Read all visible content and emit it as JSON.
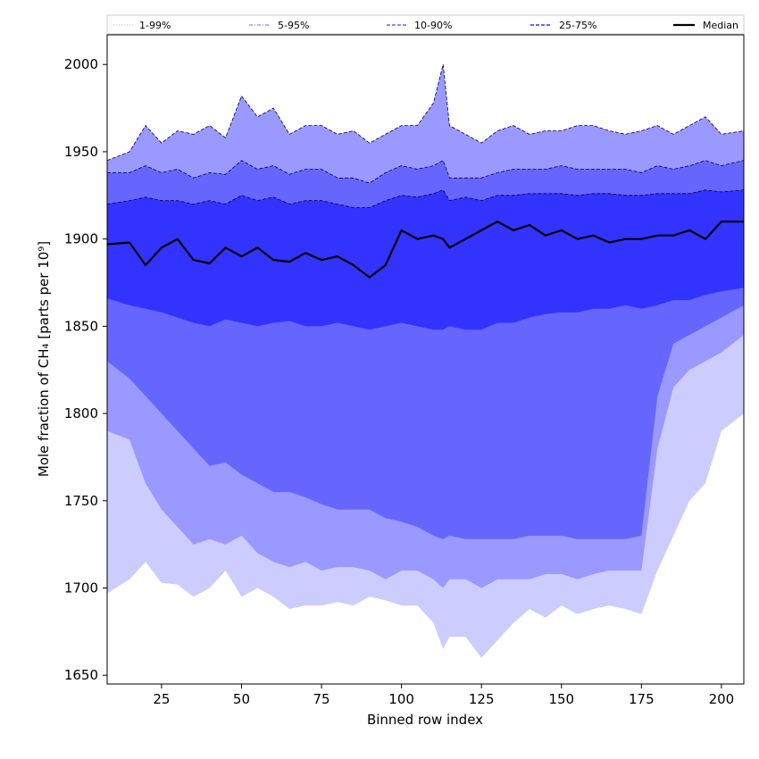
{
  "chart_data": {
    "type": "area",
    "xlabel": "Binned row index",
    "ylabel": "Mole fraction of CH₄ [parts per 10⁹]",
    "xlim": [
      8,
      207
    ],
    "ylim": [
      1645,
      2017
    ],
    "x_ticks": [
      25,
      50,
      75,
      100,
      125,
      150,
      175,
      200
    ],
    "y_ticks": [
      1650,
      1700,
      1750,
      1800,
      1850,
      1900,
      1950,
      2000
    ],
    "legend_position": "top",
    "legend": [
      {
        "label": "1-99%",
        "color": "#ccccff",
        "style": "dotted"
      },
      {
        "label": "5-95%",
        "color": "#9999ff",
        "style": "dashdot"
      },
      {
        "label": "10-90%",
        "color": "#6666ff",
        "style": "dashed"
      },
      {
        "label": "25-75%",
        "color": "#3333ff",
        "style": "dashed"
      },
      {
        "label": "Median",
        "color": "#000000",
        "style": "solid"
      }
    ],
    "x": [
      8,
      15,
      20,
      25,
      30,
      35,
      40,
      45,
      50,
      55,
      60,
      65,
      70,
      75,
      80,
      85,
      90,
      95,
      100,
      105,
      110,
      113,
      115,
      120,
      125,
      130,
      135,
      140,
      145,
      150,
      155,
      160,
      165,
      170,
      175,
      180,
      185,
      190,
      195,
      200,
      207
    ],
    "series": [
      {
        "name": "1-99%",
        "role": "band",
        "color": "#ccccff",
        "lower": [
          1697,
          1705,
          1715,
          1703,
          1702,
          1695,
          1700,
          1710,
          1695,
          1700,
          1695,
          1688,
          1690,
          1690,
          1692,
          1690,
          1695,
          1693,
          1690,
          1690,
          1680,
          1665,
          1672,
          1672,
          1660,
          1670,
          1680,
          1688,
          1683,
          1690,
          1685,
          1688,
          1690,
          1688,
          1685,
          1710,
          1730,
          1750,
          1760,
          1790,
          1800
        ],
        "upper": [
          1945,
          1950,
          1965,
          1955,
          1962,
          1960,
          1965,
          1958,
          1982,
          1970,
          1975,
          1960,
          1965,
          1965,
          1960,
          1962,
          1955,
          1960,
          1965,
          1965,
          1978,
          2000,
          1965,
          1960,
          1955,
          1962,
          1965,
          1960,
          1962,
          1962,
          1965,
          1965,
          1962,
          1960,
          1962,
          1965,
          1960,
          1965,
          1970,
          1960,
          1962
        ]
      },
      {
        "name": "5-95%",
        "role": "band",
        "color": "#9999ff",
        "lower": [
          1790,
          1785,
          1760,
          1745,
          1735,
          1725,
          1728,
          1725,
          1730,
          1720,
          1715,
          1712,
          1715,
          1710,
          1712,
          1712,
          1710,
          1705,
          1710,
          1710,
          1705,
          1700,
          1705,
          1705,
          1700,
          1705,
          1705,
          1705,
          1708,
          1708,
          1705,
          1708,
          1710,
          1710,
          1710,
          1780,
          1815,
          1825,
          1830,
          1835,
          1845
        ]
      },
      {
        "name": "10-90%",
        "role": "band",
        "color": "#6666ff",
        "lower": [
          1830,
          1820,
          1810,
          1800,
          1790,
          1780,
          1770,
          1772,
          1765,
          1760,
          1755,
          1755,
          1752,
          1748,
          1745,
          1745,
          1745,
          1740,
          1738,
          1735,
          1730,
          1728,
          1730,
          1728,
          1728,
          1728,
          1728,
          1730,
          1730,
          1730,
          1728,
          1728,
          1728,
          1728,
          1730,
          1810,
          1840,
          1845,
          1850,
          1855,
          1862
        ],
        "upper": [
          1938,
          1938,
          1942,
          1938,
          1940,
          1935,
          1938,
          1937,
          1945,
          1940,
          1942,
          1937,
          1940,
          1940,
          1935,
          1935,
          1932,
          1938,
          1942,
          1940,
          1942,
          1945,
          1935,
          1935,
          1935,
          1938,
          1940,
          1940,
          1940,
          1942,
          1940,
          1940,
          1940,
          1940,
          1938,
          1942,
          1940,
          1942,
          1945,
          1942,
          1945
        ]
      },
      {
        "name": "25-75%",
        "role": "band",
        "color": "#3333ff",
        "lower": [
          1866,
          1862,
          1860,
          1858,
          1855,
          1852,
          1850,
          1854,
          1852,
          1850,
          1852,
          1853,
          1850,
          1850,
          1852,
          1850,
          1848,
          1850,
          1852,
          1850,
          1848,
          1848,
          1850,
          1848,
          1848,
          1852,
          1852,
          1855,
          1857,
          1858,
          1858,
          1860,
          1860,
          1862,
          1860,
          1862,
          1865,
          1865,
          1868,
          1870,
          1872
        ],
        "upper": [
          1920,
          1922,
          1924,
          1922,
          1922,
          1920,
          1922,
          1920,
          1925,
          1922,
          1924,
          1920,
          1922,
          1922,
          1920,
          1918,
          1918,
          1922,
          1925,
          1924,
          1926,
          1928,
          1922,
          1924,
          1922,
          1925,
          1925,
          1926,
          1926,
          1926,
          1925,
          1926,
          1926,
          1925,
          1925,
          1926,
          1926,
          1926,
          1928,
          1927,
          1928
        ]
      },
      {
        "name": "Median",
        "role": "line",
        "color": "#000000",
        "values": [
          1897,
          1898,
          1885,
          1895,
          1900,
          1888,
          1886,
          1895,
          1890,
          1895,
          1888,
          1887,
          1892,
          1888,
          1890,
          1885,
          1878,
          1885,
          1905,
          1900,
          1902,
          1900,
          1895,
          1900,
          1905,
          1910,
          1905,
          1908,
          1902,
          1905,
          1900,
          1902,
          1898,
          1900,
          1900,
          1902,
          1902,
          1905,
          1900,
          1910,
          1910
        ]
      }
    ]
  }
}
